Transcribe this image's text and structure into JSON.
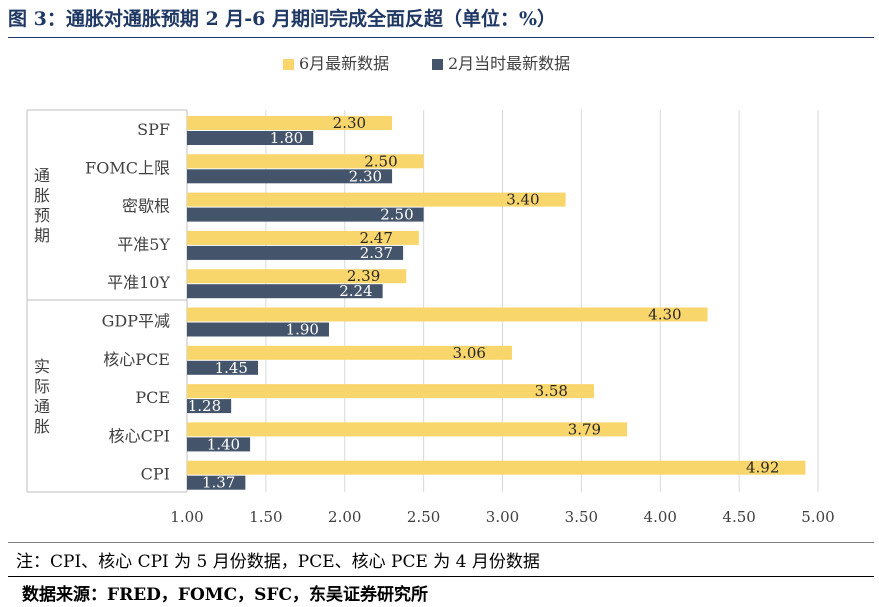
{
  "figure": {
    "title": "图 3：通胀对通胀预期 2 月-6 月期间完成全面反超（单位：%）",
    "note": "注：CPI、核心 CPI 为 5 月份数据，PCE、核心 PCE 为 4 月份数据",
    "source": "数据来源：FRED，FOMC，SFC，东吴证券研究所"
  },
  "chart_data": {
    "type": "bar",
    "orientation": "horizontal",
    "categories": [
      "SPF",
      "FOMC上限",
      "密歇根",
      "平准5Y",
      "平准10Y",
      "GDP平减",
      "核心PCE",
      "PCE",
      "核心CPI",
      "CPI"
    ],
    "groups": [
      {
        "label": "通胀预期",
        "categories": [
          "SPF",
          "FOMC上限",
          "密歇根",
          "平准5Y",
          "平准10Y"
        ]
      },
      {
        "label": "实际通胀",
        "categories": [
          "GDP平减",
          "核心PCE",
          "PCE",
          "核心CPI",
          "CPI"
        ]
      }
    ],
    "series": [
      {
        "name": "6月最新数据",
        "color": "#f9d66b",
        "values": [
          2.3,
          2.5,
          3.4,
          2.47,
          2.39,
          4.3,
          3.06,
          3.58,
          3.79,
          4.92
        ]
      },
      {
        "name": "2月当时最新数据",
        "color": "#44546a",
        "values": [
          1.8,
          2.3,
          2.5,
          2.37,
          2.24,
          1.9,
          1.45,
          1.28,
          1.4,
          1.37
        ]
      }
    ],
    "xlim": [
      1.0,
      5.0
    ],
    "xticks": [
      "1.00",
      "1.50",
      "2.00",
      "2.50",
      "3.00",
      "3.50",
      "4.00",
      "4.50",
      "5.00"
    ],
    "grid": true,
    "legend_position": "top"
  }
}
